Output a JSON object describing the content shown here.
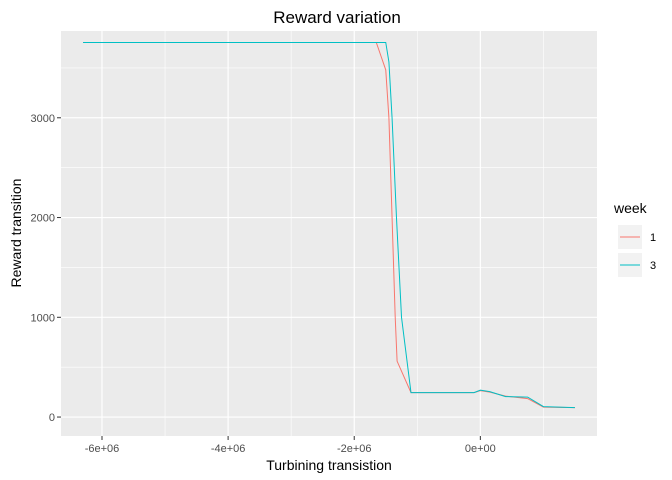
{
  "chart_data": {
    "type": "line",
    "title": "Reward variation",
    "xlabel": "Turbining transistion",
    "ylabel": "Reward transition",
    "xlim": [
      -6600000,
      1860000
    ],
    "ylim": [
      -100,
      3870000
    ],
    "xlim_note": "",
    "x_ticks": [
      {
        "value": -6000000,
        "label": "-6e+06"
      },
      {
        "value": -4000000,
        "label": "-4e+06"
      },
      {
        "value": -2000000,
        "label": "-2e+06"
      },
      {
        "value": 0,
        "label": "0e+00"
      }
    ],
    "y_ticks": [
      {
        "value": 0,
        "label": "0"
      },
      {
        "value": 1000,
        "label": "1000"
      },
      {
        "value": 2000,
        "label": "2000"
      },
      {
        "value": 3000,
        "label": "3000"
      }
    ],
    "grid": true,
    "legend": {
      "title": "week",
      "position": "right"
    },
    "series": [
      {
        "name": "1",
        "color": "#F8766D",
        "points": [
          [
            -6300000,
            3755
          ],
          [
            -1650000,
            3755
          ],
          [
            -1500000,
            3480
          ],
          [
            -1450000,
            3000
          ],
          [
            -1400000,
            2000
          ],
          [
            -1350000,
            1000
          ],
          [
            -1320000,
            560
          ],
          [
            -1100000,
            245
          ],
          [
            -100000,
            245
          ],
          [
            0,
            265
          ],
          [
            150000,
            250
          ],
          [
            400000,
            210
          ],
          [
            750000,
            185
          ],
          [
            1000000,
            100
          ],
          [
            1500000,
            95
          ]
        ]
      },
      {
        "name": "3",
        "color": "#00BFC4",
        "points": [
          [
            -6300000,
            3755
          ],
          [
            -1500000,
            3755
          ],
          [
            -1450000,
            3560
          ],
          [
            -1400000,
            3000
          ],
          [
            -1330000,
            2000
          ],
          [
            -1250000,
            1000
          ],
          [
            -1100000,
            245
          ],
          [
            -100000,
            245
          ],
          [
            0,
            270
          ],
          [
            150000,
            255
          ],
          [
            400000,
            205
          ],
          [
            750000,
            200
          ],
          [
            1000000,
            105
          ],
          [
            1500000,
            95
          ]
        ]
      }
    ]
  }
}
